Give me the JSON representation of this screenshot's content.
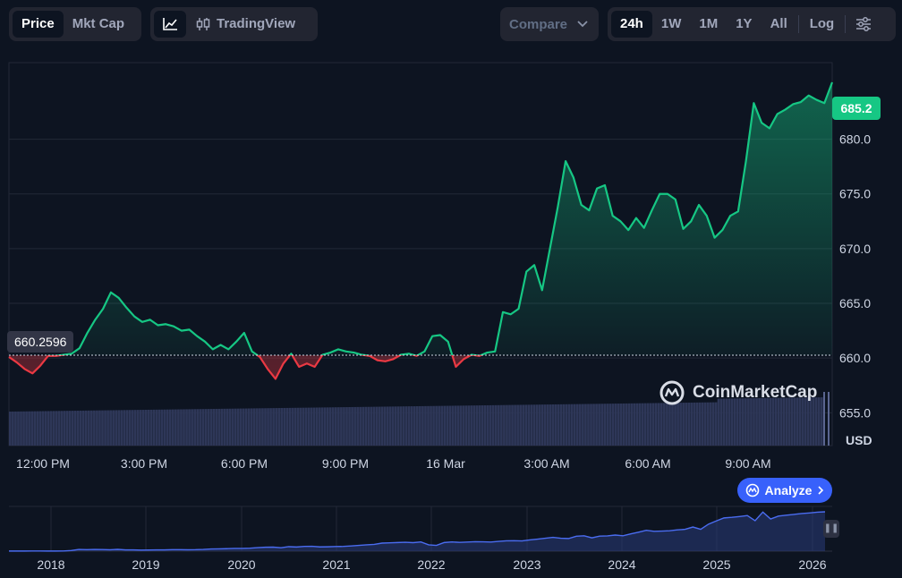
{
  "toolbar": {
    "metric_tabs": [
      {
        "label": "Price",
        "active": true
      },
      {
        "label": "Mkt Cap",
        "active": false
      }
    ],
    "chart_type": {
      "line_icon": "line-chart-icon",
      "candle_icon": "candlestick-icon",
      "tradingview_label": "TradingView"
    },
    "compare_label": "Compare",
    "ranges": [
      {
        "label": "24h",
        "active": true
      },
      {
        "label": "1W",
        "active": false
      },
      {
        "label": "1M",
        "active": false
      },
      {
        "label": "1Y",
        "active": false
      },
      {
        "label": "All",
        "active": false
      }
    ],
    "log_label": "Log",
    "settings_icon": "sliders-icon"
  },
  "chart": {
    "current_price": "685.2",
    "baseline_label": "660.2596",
    "currency": "USD",
    "watermark": "CoinMarketCap",
    "analyze_label": "Analyze",
    "colors": {
      "up": "#16c784",
      "down": "#ea3943",
      "volume": "#2e3758",
      "navigator": "#4a6cf0"
    }
  },
  "chart_data": {
    "type": "line",
    "ylim": [
      652,
      687
    ],
    "y_ticks": [
      "655.0",
      "660.0",
      "665.0",
      "670.0",
      "675.0",
      "680.0"
    ],
    "x_ticks": [
      "12:00 PM",
      "3:00 PM",
      "6:00 PM",
      "9:00 PM",
      "16 Mar",
      "3:00 AM",
      "6:00 AM",
      "9:00 AM"
    ],
    "baseline": 660.2596,
    "last": 685.2,
    "series": [
      {
        "x": [
          10.7,
          11.0,
          11.3,
          11.6,
          11.9,
          12.2,
          12.5,
          12.8,
          13.1,
          13.4,
          13.7,
          14.0,
          14.3,
          14.6,
          14.9,
          15.2,
          15.5,
          15.8,
          16.1,
          16.4,
          16.7,
          17.0,
          17.3,
          17.6,
          17.9,
          18.2,
          18.5,
          18.8,
          19.1,
          19.4,
          19.7,
          20.0,
          20.3,
          20.6,
          20.9,
          21.2,
          21.5,
          21.8,
          22.1,
          22.4,
          22.7,
          23.0,
          23.3,
          23.6,
          23.9,
          24.2,
          24.5,
          24.8,
          25.1,
          25.4,
          25.7,
          26.0,
          26.3,
          26.6,
          26.9,
          27.2,
          27.5,
          27.8,
          28.1,
          28.4,
          28.7,
          29.0,
          29.3,
          29.6,
          29.9,
          30.2,
          30.5,
          30.8,
          31.1,
          31.4,
          31.7,
          32.0,
          32.3,
          32.6,
          32.9,
          33.2,
          33.5,
          33.8,
          34.1,
          34.4,
          34.7,
          35.0,
          35.3,
          35.6
        ],
        "y": [
          660.1,
          659.6,
          659.0,
          658.6,
          659.3,
          660.2,
          660.2,
          660.3,
          660.4,
          660.9,
          662.3,
          663.5,
          664.5,
          666.0,
          665.5,
          664.6,
          663.8,
          663.3,
          663.5,
          663.0,
          663.1,
          662.9,
          662.5,
          662.6,
          662.0,
          661.5,
          660.8,
          661.2,
          660.8,
          661.5,
          662.3,
          660.6,
          660.1,
          659.0,
          658.1,
          659.5,
          660.4,
          659.2,
          659.5,
          659.2,
          660.3,
          660.5,
          660.8,
          660.6,
          660.5,
          660.3,
          660.2,
          659.8,
          659.7,
          659.9,
          660.3,
          660.4,
          660.2,
          660.6,
          662.0,
          662.1,
          661.5,
          659.2,
          659.9,
          660.3,
          660.2,
          660.5,
          660.6,
          664.2,
          664.0,
          664.5,
          667.9,
          668.5,
          666.2,
          670.0,
          673.8,
          678.0,
          676.5,
          674.0,
          673.5,
          675.5,
          675.8,
          673.0,
          672.5,
          671.7,
          672.8,
          671.9,
          673.5,
          675.0
        ]
      },
      {
        "x": [
          35.9,
          36.2,
          36.5,
          36.8,
          37.1,
          37.4,
          37.7,
          38.0,
          38.3,
          38.6,
          38.9,
          39.2,
          39.5,
          39.8,
          40.1,
          40.4,
          40.7,
          41.0,
          41.3,
          41.6,
          41.9,
          42.2
        ],
        "y": [
          675.0,
          674.5,
          671.8,
          672.5,
          674.0,
          673.0,
          671.0,
          671.7,
          673.0,
          673.4,
          678.0,
          683.3,
          681.5,
          681.0,
          682.3,
          682.7,
          683.2,
          683.4,
          684.0,
          683.6,
          683.3,
          685.2
        ]
      }
    ]
  },
  "navigator": {
    "years": [
      "2018",
      "2019",
      "2020",
      "2021",
      "2022",
      "2023",
      "2024",
      "2025",
      "2026"
    ],
    "values": [
      2,
      2,
      2,
      3,
      3,
      2,
      2,
      3,
      10,
      30,
      26,
      30,
      28,
      25,
      31,
      22,
      22,
      18,
      20,
      22,
      22,
      27,
      27,
      25,
      26,
      30,
      38,
      40,
      43,
      48,
      48,
      52,
      62,
      68,
      70,
      60,
      78,
      72,
      82,
      84,
      74,
      76,
      80,
      82,
      90,
      100,
      110,
      118,
      140,
      145,
      150,
      155,
      148,
      160,
      110,
      100,
      150,
      160,
      153,
      158,
      165,
      162,
      158,
      170,
      180,
      182,
      178,
      195,
      210,
      225,
      240,
      225,
      220,
      260,
      268,
      232,
      262,
      265,
      280,
      268,
      300,
      330,
      363,
      345,
      350,
      355,
      370,
      380,
      420,
      380,
      470,
      525,
      578,
      588,
      603,
      620,
      530,
      680,
      560,
      610,
      625,
      640,
      655,
      665,
      678,
      685
    ]
  }
}
